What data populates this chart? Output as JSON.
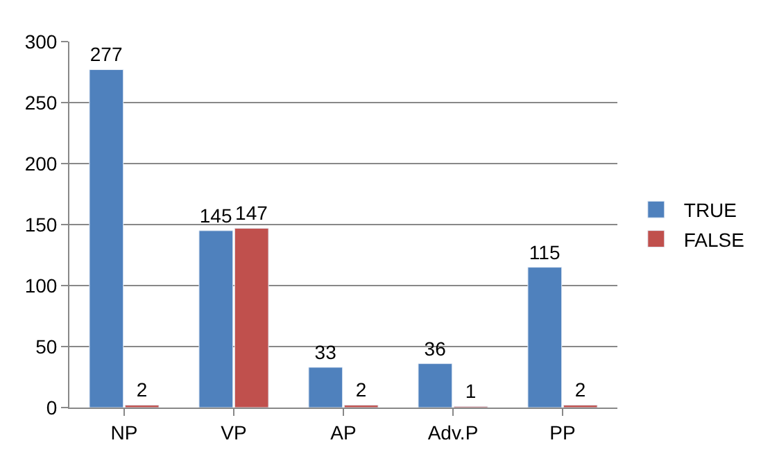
{
  "chart_data": {
    "type": "bar",
    "categories": [
      "NP",
      "VP",
      "AP",
      "Adv.P",
      "PP"
    ],
    "series": [
      {
        "name": "TRUE",
        "color": "#4f81bd",
        "values": [
          277,
          145,
          33,
          36,
          115
        ]
      },
      {
        "name": "FALSE",
        "color": "#c0504d",
        "values": [
          2,
          147,
          2,
          1,
          2
        ]
      }
    ],
    "ylim": [
      0,
      300
    ],
    "yticks": [
      0,
      50,
      100,
      150,
      200,
      250,
      300
    ],
    "grid": "y",
    "legend": "right",
    "data_labels": true
  }
}
